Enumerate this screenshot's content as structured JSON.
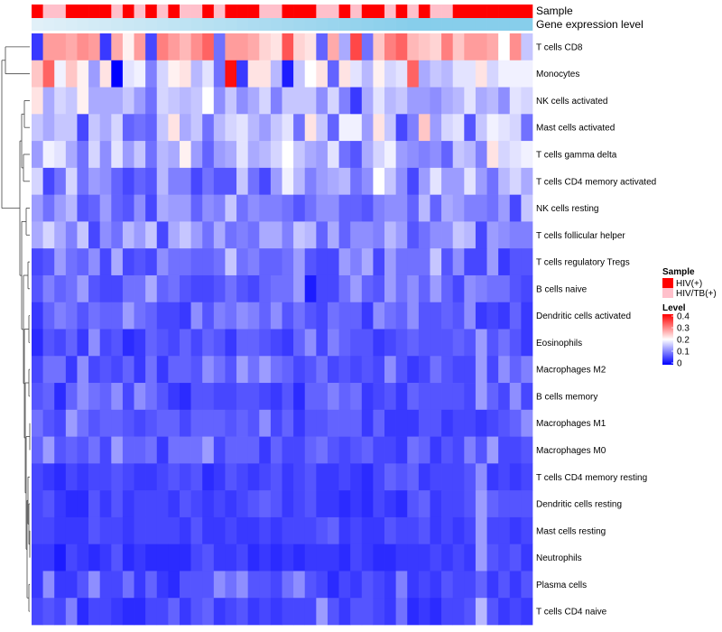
{
  "chart_data": {
    "type": "heatmap",
    "annotation_labels": {
      "sample": "Sample",
      "gene_level": "Gene expression level"
    },
    "sample_groups": [
      "T",
      "F",
      "F",
      "T",
      "T",
      "T",
      "T",
      "F",
      "T",
      "F",
      "T",
      "F",
      "T",
      "F",
      "F",
      "T",
      "F",
      "T",
      "T",
      "T",
      "F",
      "F",
      "T",
      "T",
      "T",
      "F",
      "F",
      "T",
      "F",
      "T",
      "T",
      "F",
      "T",
      "F",
      "T",
      "F",
      "F",
      "T",
      "T",
      "T",
      "T",
      "T",
      "T",
      "T"
    ],
    "rows": [
      "T cells CD8",
      "Monocytes",
      "NK cells activated",
      "Mast cells activated",
      "T cells gamma delta",
      "T cells CD4 memory activated",
      "NK cells resting",
      "T cells follicular helper",
      "T cells regulatory  Tregs",
      "B cells naive",
      "Dendritic cells activated",
      "Eosinophils",
      "Macrophages M2",
      "B cells memory",
      "Macrophages M1",
      "Macrophages M0",
      "T cells CD4 memory resting",
      "Dendritic cells resting",
      "Mast cells resting",
      "Neutrophils",
      "Plasma cells",
      "T cells CD4 naive"
    ],
    "values": [
      "4ppoqp4ojp5rpnqt8ppolkulk7ocv8mrtnmlrmppoiqe",
      "mthmjbk0gh9fjkdg8z4kkd2eik7kgdjfgtcedggkfhhh",
      "kcfejccceb8fedeiaeacf9eeeaf94cgdebbacdgcdagf",
      "ecee5ecf787ekce8dfgdbeg8ke7hhbke59mbfg6ehgf8",
      "bhgc8fagbe8dcjb7bcgcdfiecbg86cfhba9a7ed9kfgh",
      "f58f8ba7576d995866e85bhd9bcd8aiea5bgbbgb8dfc",
      "b8bd67b76a5cbb7a9e8a99868aa7769aa7d7cb998b5e",
      "cfc9e5a8dbe5ceb8c898cc9ed7c7aa9db68aaed5ba99",
      "56b87a5c565a88778e89778b655b9c5b888e6a55b466",
      "6978b65588c786556865788b2558b76b8a7b75a98865",
      "47986877b87554a698a97a68658774a87a6676a45474",
      "36574a563476575764776547a59766456766676b6864",
      "5884a5657484776a86b8b8756856565a6458655b5a79",
      "6737a87a5a86436655665463779784564766665b75a5",
      "865b8677656775777676a5746677747444664554567a",
      "7b67685b7784888b577747557865675548746596b556",
      "543545565445656346545645644543576745556a4545",
      "564336464555465454567645644343543674556b7666",
      "554446554555546445445455567454465564545b5545",
      "442543463433335644534343444354334445454b6564",
      "4a446a5584743666a8a6658a65354654945465574646",
      "5659355433557467456454555b6466548343556d6454"
    ],
    "value_encoding": "one character per cell, base36 digit 0-z; level = digit / 36 * 0.4",
    "colorbar": {
      "min": 0,
      "max": 0.4,
      "ticks": [
        "0.4",
        "0.3",
        "0.2",
        "0.1",
        "0"
      ]
    },
    "colors": {
      "low": "#0000FF",
      "mid": "#FFFFFF",
      "high": "#FF0000",
      "hiv": "#FF0000",
      "hivtb": "#FFC0CB",
      "gene_bar": "#87CEEB"
    },
    "legend": {
      "sample_title": "Sample",
      "hiv": "HIV(+)",
      "hivtb": "HIV/TB(+)",
      "level_title": "Level"
    }
  }
}
